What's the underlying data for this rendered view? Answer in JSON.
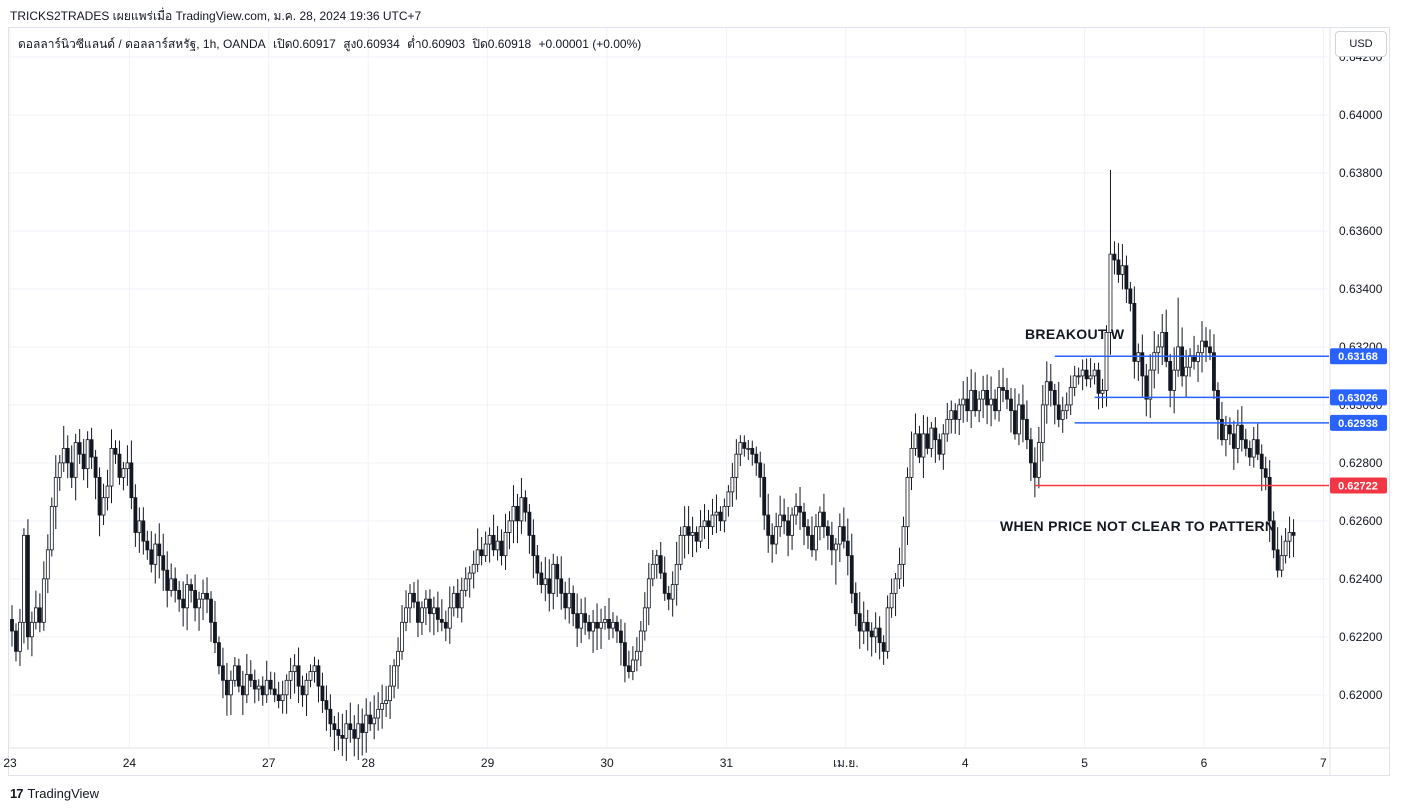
{
  "header": {
    "publish_line": "TRICKS2TRADES เผยแพร่เมื่อ TradingView.com, ม.ค. 28, 2024 19:36 UTC+7"
  },
  "legend": {
    "symbol": "ดอลลาร์นิวซีแลนด์ / ดอลลาร์สหรัฐ, 1h, OANDA",
    "open": "เปิด0.60917",
    "high": "สูง0.60934",
    "low": "ต่ำ0.60903",
    "close": "ปิด0.60918",
    "change": "+0.00001 (+0.00%)"
  },
  "currency_button": "USD",
  "footer": {
    "logo_text": "TradingView",
    "logo_mark": "17"
  },
  "annotations": {
    "breakout": "BREAKOUT W",
    "clear": "WHEN PRICE NOT CLEAR TO PATTERN"
  },
  "colors": {
    "up": "#ffffff",
    "down": "#131722",
    "wick": "#131722",
    "grid": "#f0f3fa",
    "blue_line": "#2962ff",
    "red_line": "#f23645",
    "axis_text": "#131722"
  },
  "chart_data": {
    "type": "candlestick",
    "symbol": "ดอลลาร์นิวซีแลนด์ / ดอลลาร์สหรัฐ",
    "timeframe": "1h",
    "ylim": [
      0.6182,
      0.643
    ],
    "y_ticks": [
      0.62,
      0.622,
      0.624,
      0.626,
      0.628,
      0.63,
      0.632,
      0.634,
      0.636,
      0.638,
      0.64,
      0.642
    ],
    "y_tick_labels": [
      "0.62000",
      "0.62200",
      "0.62400",
      "0.62600",
      "0.62800",
      "0.63000",
      "0.63200",
      "0.63400",
      "0.63600",
      "0.63800",
      "0.64000",
      "0.64200"
    ],
    "x_ticks": [
      {
        "label": "23",
        "bar": 0
      },
      {
        "label": "24",
        "bar": 30
      },
      {
        "label": "27",
        "bar": 65
      },
      {
        "label": "28",
        "bar": 90
      },
      {
        "label": "29",
        "bar": 120
      },
      {
        "label": "30",
        "bar": 150
      },
      {
        "label": "31",
        "bar": 180
      },
      {
        "label": "เม.ย.",
        "bar": 210
      },
      {
        "label": "4",
        "bar": 240
      },
      {
        "label": "5",
        "bar": 270
      },
      {
        "label": "6",
        "bar": 300
      },
      {
        "label": "7",
        "bar": 330
      }
    ],
    "horizontal_levels": [
      {
        "value": 0.63168,
        "label": "0.63168",
        "color": "#2962ff",
        "start_bar": 262
      },
      {
        "value": 0.63026,
        "label": "0.63026",
        "color": "#2962ff",
        "start_bar": 272
      },
      {
        "value": 0.62938,
        "label": "0.62938",
        "color": "#2962ff",
        "start_bar": 267
      },
      {
        "value": 0.62722,
        "label": "0.62722",
        "color": "#f23645",
        "start_bar": 257
      }
    ],
    "closes": [
      0.6222,
      0.6215,
      0.6225,
      0.6255,
      0.622,
      0.6225,
      0.623,
      0.6225,
      0.624,
      0.625,
      0.6265,
      0.6275,
      0.628,
      0.6285,
      0.628,
      0.6275,
      0.6287,
      0.6283,
      0.6278,
      0.6288,
      0.6282,
      0.6275,
      0.6262,
      0.6268,
      0.6272,
      0.6285,
      0.6283,
      0.6275,
      0.6278,
      0.628,
      0.6268,
      0.6256,
      0.626,
      0.6253,
      0.625,
      0.6245,
      0.6252,
      0.6248,
      0.6243,
      0.6236,
      0.624,
      0.6236,
      0.6233,
      0.623,
      0.6238,
      0.6236,
      0.623,
      0.6233,
      0.6235,
      0.6233,
      0.6225,
      0.6218,
      0.621,
      0.6205,
      0.62,
      0.6205,
      0.621,
      0.6203,
      0.62,
      0.6207,
      0.6205,
      0.6202,
      0.6203,
      0.62,
      0.6205,
      0.6202,
      0.62,
      0.6198,
      0.62,
      0.6205,
      0.6208,
      0.621,
      0.6203,
      0.62,
      0.6205,
      0.6208,
      0.621,
      0.6203,
      0.6198,
      0.6195,
      0.619,
      0.6188,
      0.6186,
      0.6185,
      0.619,
      0.6188,
      0.6185,
      0.619,
      0.6187,
      0.6193,
      0.619,
      0.6192,
      0.6195,
      0.6197,
      0.6198,
      0.6203,
      0.621,
      0.6215,
      0.6225,
      0.623,
      0.6235,
      0.6232,
      0.6225,
      0.623,
      0.6233,
      0.6228,
      0.623,
      0.6226,
      0.6225,
      0.6223,
      0.623,
      0.6235,
      0.623,
      0.6236,
      0.624,
      0.6242,
      0.6245,
      0.625,
      0.6248,
      0.6252,
      0.6255,
      0.625,
      0.6253,
      0.6248,
      0.6256,
      0.626,
      0.6265,
      0.626,
      0.6268,
      0.6263,
      0.6255,
      0.6248,
      0.6242,
      0.6238,
      0.624,
      0.6235,
      0.6245,
      0.624,
      0.6235,
      0.623,
      0.6235,
      0.6228,
      0.6223,
      0.6228,
      0.6225,
      0.6222,
      0.6225,
      0.6223,
      0.6225,
      0.6226,
      0.6223,
      0.6225,
      0.6222,
      0.6218,
      0.621,
      0.6208,
      0.6212,
      0.6215,
      0.6222,
      0.623,
      0.624,
      0.6245,
      0.6248,
      0.6242,
      0.6235,
      0.6233,
      0.6238,
      0.6245,
      0.6255,
      0.6258,
      0.6255,
      0.6256,
      0.6253,
      0.6258,
      0.626,
      0.6258,
      0.6262,
      0.6263,
      0.626,
      0.6265,
      0.627,
      0.6275,
      0.6283,
      0.6287,
      0.6285,
      0.6285,
      0.6283,
      0.628,
      0.6275,
      0.6262,
      0.6255,
      0.6252,
      0.6258,
      0.6262,
      0.626,
      0.6255,
      0.6262,
      0.6265,
      0.6263,
      0.6258,
      0.6255,
      0.625,
      0.6258,
      0.6263,
      0.6258,
      0.6255,
      0.625,
      0.6252,
      0.6258,
      0.6253,
      0.6248,
      0.6235,
      0.6228,
      0.6222,
      0.6225,
      0.6222,
      0.622,
      0.6223,
      0.6218,
      0.6215,
      0.623,
      0.6235,
      0.624,
      0.6245,
      0.6258,
      0.6275,
      0.6285,
      0.629,
      0.6282,
      0.629,
      0.6285,
      0.6292,
      0.6288,
      0.6283,
      0.629,
      0.6295,
      0.6298,
      0.6295,
      0.63,
      0.6302,
      0.6298,
      0.6305,
      0.6298,
      0.6302,
      0.6305,
      0.63,
      0.6302,
      0.6298,
      0.6306,
      0.6305,
      0.6302,
      0.6298,
      0.629,
      0.63,
      0.6295,
      0.6288,
      0.628,
      0.6275,
      0.6287,
      0.63,
      0.6308,
      0.6305,
      0.63,
      0.6295,
      0.6298,
      0.63,
      0.6306,
      0.631,
      0.631,
      0.6312,
      0.6309,
      0.631,
      0.6312,
      0.6304,
      0.6305,
      0.6325,
      0.6352,
      0.635,
      0.6345,
      0.6348,
      0.634,
      0.6335,
      0.6315,
      0.6318,
      0.631,
      0.6302,
      0.6312,
      0.6318,
      0.632,
      0.6325,
      0.6315,
      0.6305,
      0.6312,
      0.632,
      0.631,
      0.6313,
      0.6317,
      0.6315,
      0.6318,
      0.6322,
      0.632,
      0.6318,
      0.6305,
      0.6295,
      0.6288,
      0.6293,
      0.629,
      0.6285,
      0.6293,
      0.6288,
      0.6285,
      0.6282,
      0.6288,
      0.6283,
      0.6278,
      0.6275,
      0.626,
      0.625,
      0.6243,
      0.6248,
      0.6253,
      0.6256,
      0.6255
    ]
  }
}
